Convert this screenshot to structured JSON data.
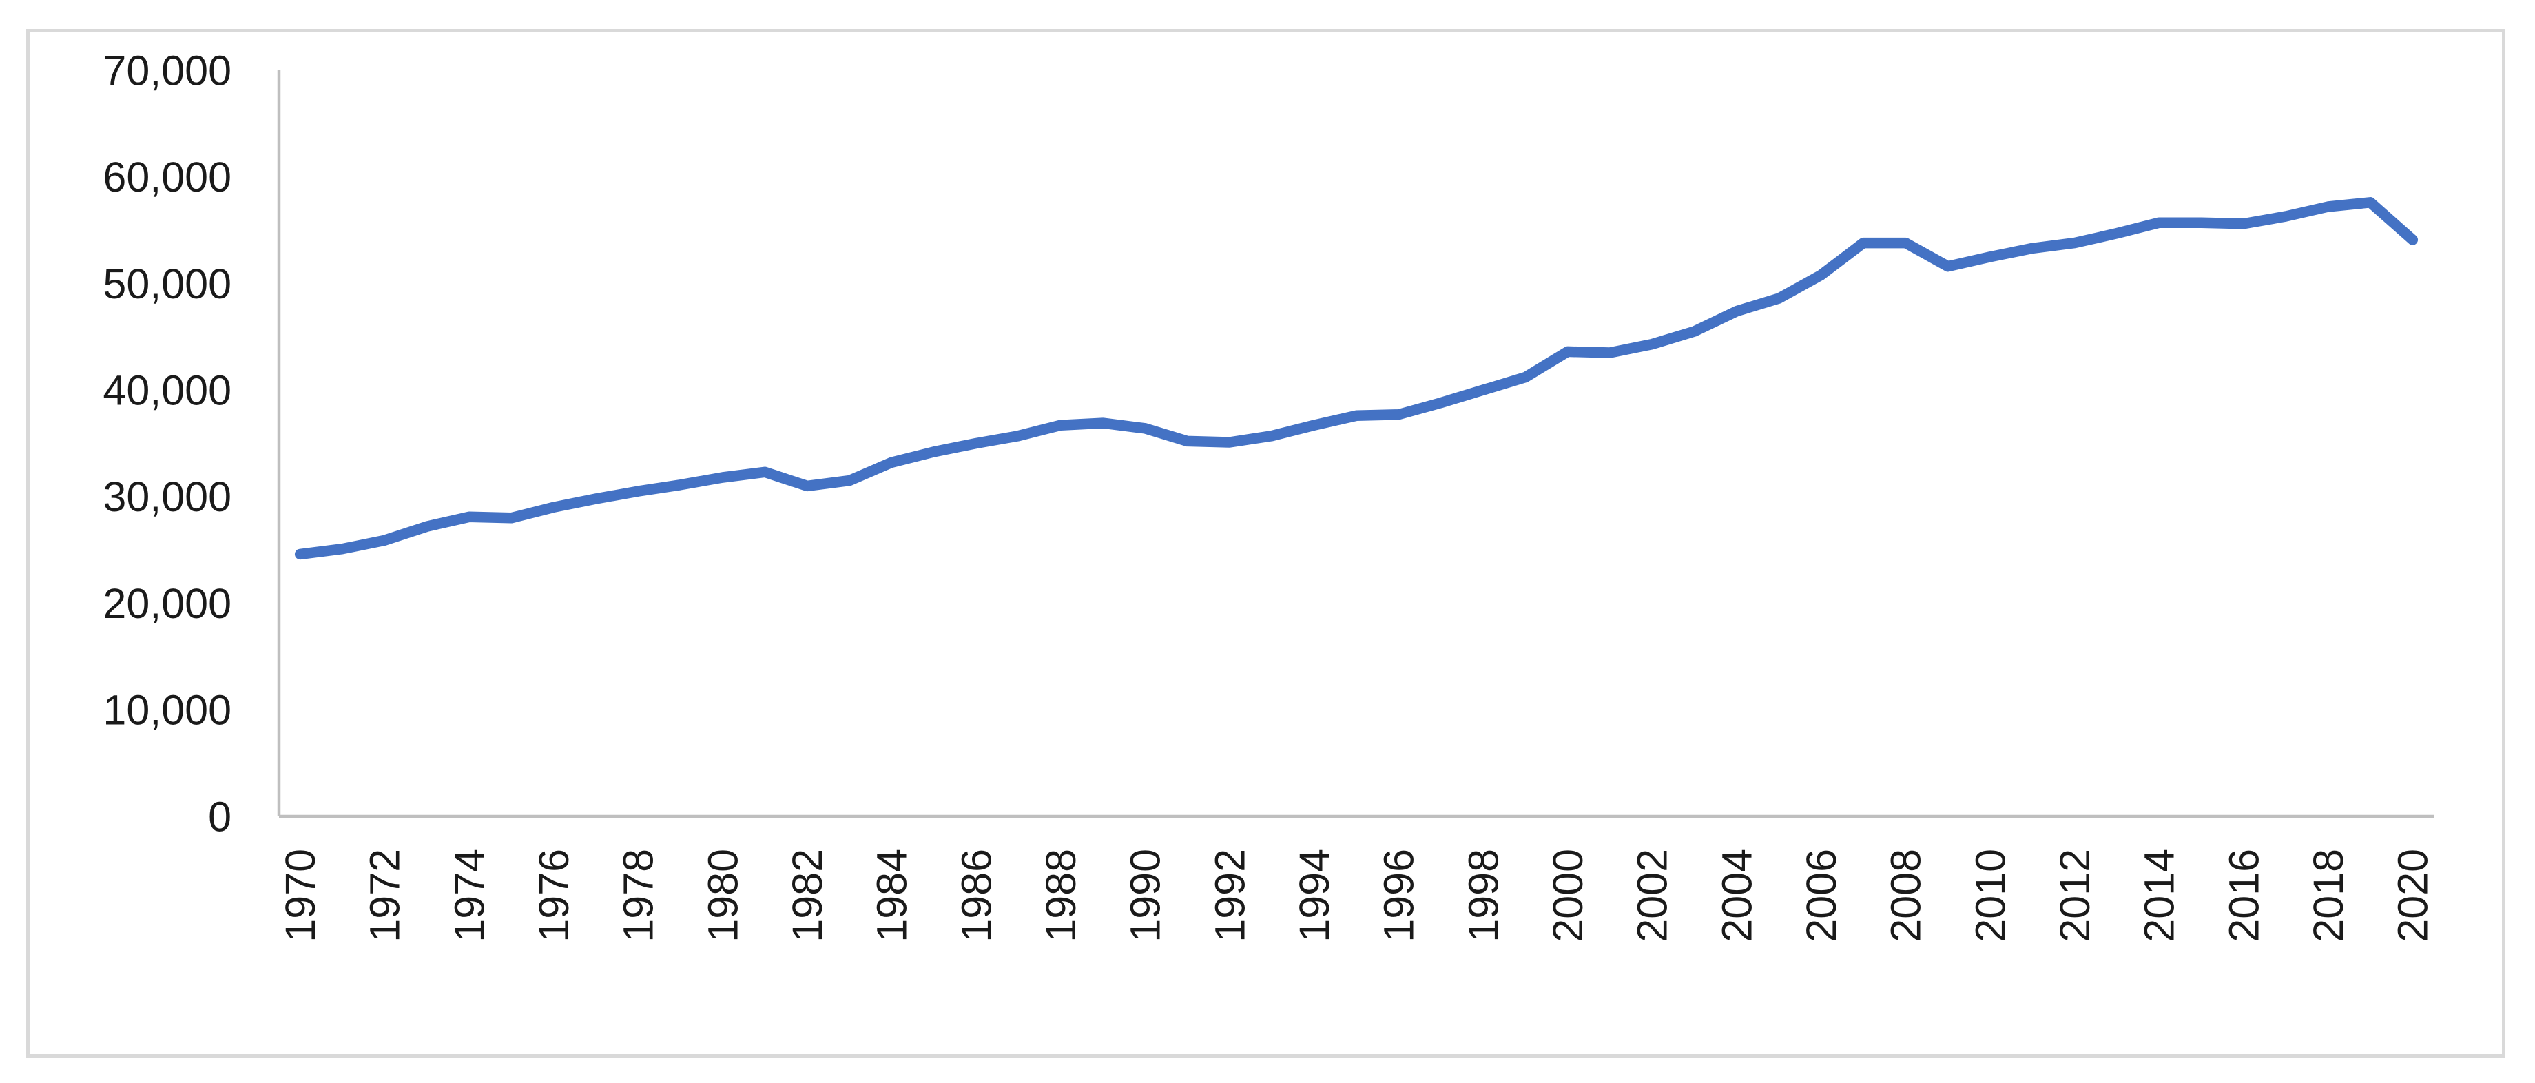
{
  "chart_data": {
    "type": "line",
    "title": "",
    "xlabel": "",
    "ylabel": "",
    "grid": false,
    "legend": "none",
    "x": [
      1970,
      1971,
      1972,
      1973,
      1974,
      1975,
      1976,
      1977,
      1978,
      1979,
      1980,
      1981,
      1982,
      1983,
      1984,
      1985,
      1986,
      1987,
      1988,
      1989,
      1990,
      1991,
      1992,
      1993,
      1994,
      1995,
      1996,
      1997,
      1998,
      1999,
      2000,
      2001,
      2002,
      2003,
      2004,
      2005,
      2006,
      2007,
      2008,
      2009,
      2010,
      2011,
      2012,
      2013,
      2014,
      2015,
      2016,
      2017,
      2018,
      2019,
      2020
    ],
    "values": [
      24600,
      25100,
      25900,
      27200,
      28100,
      28000,
      29000,
      29800,
      30500,
      31100,
      31800,
      32300,
      31000,
      31500,
      33200,
      34200,
      35000,
      35700,
      36700,
      36900,
      36400,
      35200,
      35100,
      35700,
      36700,
      37600,
      37700,
      38800,
      40000,
      41200,
      43600,
      43500,
      44300,
      45500,
      47400,
      48600,
      50800,
      53800,
      53800,
      51600,
      52500,
      53300,
      53800,
      54700,
      55700,
      55700,
      55600,
      56300,
      57200,
      57600,
      54100
    ],
    "ylim": [
      0,
      70000
    ],
    "y_ticks": [
      0,
      10000,
      20000,
      30000,
      40000,
      50000,
      60000,
      70000
    ],
    "y_tick_labels": [
      "0",
      "10,000",
      "20,000",
      "30,000",
      "40,000",
      "50,000",
      "60,000",
      "70,000"
    ],
    "x_tick_step_years": 2,
    "x_tick_labels": [
      "1970",
      "1972",
      "1974",
      "1976",
      "1978",
      "1980",
      "1982",
      "1984",
      "1986",
      "1988",
      "1990",
      "1992",
      "1994",
      "1996",
      "1998",
      "2000",
      "2002",
      "2004",
      "2006",
      "2008",
      "2010",
      "2012",
      "2014",
      "2016",
      "2018",
      "2020"
    ],
    "colors": {
      "line": "#4472C4",
      "axis": "#BFBFBF",
      "chart_border": "#D9D9D9",
      "tick_label": "#1a1a1a",
      "background": "#FFFFFF"
    }
  }
}
